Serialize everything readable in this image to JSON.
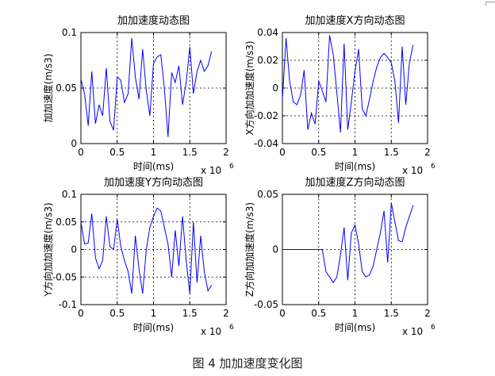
{
  "caption": "图 4  加加速度变化图",
  "chart_data": [
    {
      "type": "line",
      "title": "加加速度动态图",
      "xlabel": "时间(ms)",
      "ylabel": "加加速度(m/s3)",
      "x_exponent": "x 10",
      "x_exponent_power": "6",
      "xlim": [
        0,
        2
      ],
      "ylim": [
        0,
        0.1
      ],
      "xticks": [
        "0",
        "0.5",
        "1",
        "1.5",
        "2"
      ],
      "yticks": [
        "0",
        "0.05",
        "0.1"
      ],
      "grid": true,
      "color": "#0000ff",
      "x": [
        0.0,
        0.05,
        0.1,
        0.15,
        0.2,
        0.25,
        0.3,
        0.35,
        0.4,
        0.45,
        0.5,
        0.55,
        0.6,
        0.65,
        0.7,
        0.75,
        0.8,
        0.85,
        0.9,
        0.95,
        1.0,
        1.05,
        1.1,
        1.15,
        1.2,
        1.25,
        1.3,
        1.35,
        1.4,
        1.45,
        1.5,
        1.55,
        1.6,
        1.65,
        1.7,
        1.75,
        1.8
      ],
      "y": [
        0.058,
        0.045,
        0.016,
        0.065,
        0.018,
        0.035,
        0.025,
        0.068,
        0.02,
        0.012,
        0.06,
        0.057,
        0.037,
        0.045,
        0.095,
        0.06,
        0.04,
        0.085,
        0.048,
        0.025,
        0.072,
        0.078,
        0.08,
        0.05,
        0.006,
        0.064,
        0.055,
        0.07,
        0.035,
        0.055,
        0.087,
        0.045,
        0.065,
        0.075,
        0.065,
        0.07,
        0.083
      ]
    },
    {
      "type": "line",
      "title": "加加速度X方向动态图",
      "xlabel": "时间(ms)",
      "ylabel": "X方向加加速度(m/s3)",
      "x_exponent": "x 10",
      "x_exponent_power": "6",
      "xlim": [
        0,
        2
      ],
      "ylim": [
        -0.04,
        0.04
      ],
      "xticks": [
        "0",
        "0.5",
        "1",
        "1.5",
        "2"
      ],
      "yticks": [
        "-0.04",
        "-0.02",
        "0",
        "0.02",
        "0.04"
      ],
      "grid": true,
      "color": "#0000ff",
      "x": [
        0.0,
        0.05,
        0.1,
        0.15,
        0.2,
        0.25,
        0.3,
        0.35,
        0.4,
        0.45,
        0.5,
        0.55,
        0.6,
        0.65,
        0.7,
        0.75,
        0.8,
        0.85,
        0.9,
        0.95,
        1.0,
        1.05,
        1.1,
        1.15,
        1.2,
        1.25,
        1.3,
        1.35,
        1.4,
        1.45,
        1.5,
        1.55,
        1.6,
        1.65,
        1.7,
        1.75,
        1.8
      ],
      "y": [
        -0.008,
        0.036,
        0.005,
        -0.01,
        -0.012,
        -0.005,
        0.013,
        -0.03,
        -0.018,
        -0.026,
        0.005,
        -0.002,
        -0.01,
        0.038,
        0.024,
        -0.003,
        -0.032,
        0.032,
        -0.03,
        -0.01,
        0.012,
        0.028,
        -0.015,
        -0.02,
        -0.008,
        0.005,
        0.015,
        0.022,
        0.025,
        0.022,
        0.018,
        0.005,
        -0.025,
        0.03,
        -0.012,
        0.018,
        0.031
      ]
    },
    {
      "type": "line",
      "title": "加加速度Y方向动态图",
      "xlabel": "时间(ms)",
      "ylabel": "Y方向加加速度(m/s3)",
      "x_exponent": "x 10",
      "x_exponent_power": "6",
      "xlim": [
        0,
        2
      ],
      "ylim": [
        -0.1,
        0.1
      ],
      "xticks": [
        "0",
        "0.5",
        "1",
        "1.5",
        "2"
      ],
      "yticks": [
        "-0.1",
        "-0.05",
        "0",
        "0.05",
        "0.1"
      ],
      "grid": true,
      "color": "#0000ff",
      "x": [
        0.0,
        0.05,
        0.1,
        0.15,
        0.2,
        0.25,
        0.3,
        0.35,
        0.4,
        0.45,
        0.5,
        0.55,
        0.6,
        0.65,
        0.7,
        0.75,
        0.8,
        0.85,
        0.9,
        0.95,
        1.0,
        1.05,
        1.1,
        1.15,
        1.2,
        1.25,
        1.3,
        1.35,
        1.4,
        1.45,
        1.5,
        1.55,
        1.6,
        1.65,
        1.7,
        1.75,
        1.8
      ],
      "y": [
        0.05,
        0.01,
        0.012,
        0.065,
        -0.015,
        -0.035,
        -0.02,
        0.06,
        0.005,
        0.0,
        0.055,
        0.005,
        -0.02,
        -0.04,
        -0.08,
        0.025,
        -0.035,
        -0.08,
        0.0,
        0.04,
        0.06,
        0.075,
        0.07,
        0.04,
        0.01,
        -0.05,
        0.035,
        -0.03,
        0.06,
        -0.02,
        -0.08,
        0.05,
        -0.06,
        0.025,
        -0.04,
        -0.075,
        -0.065
      ]
    },
    {
      "type": "line",
      "title": "加加速度Z方向动态图",
      "xlabel": "时间(ms)",
      "ylabel": "Z方向加加速度(m/s3)",
      "x_exponent": "x 10",
      "x_exponent_power": "6",
      "xlim": [
        0,
        2
      ],
      "ylim": [
        -0.05,
        0.05
      ],
      "xticks": [
        "0",
        "0.5",
        "1",
        "1.5",
        "2"
      ],
      "yticks": [
        "-0.05",
        "0",
        "0.05"
      ],
      "grid": true,
      "color": "#0000ff",
      "x": [
        0.0,
        0.05,
        0.1,
        0.15,
        0.2,
        0.25,
        0.3,
        0.35,
        0.4,
        0.45,
        0.5,
        0.55,
        0.6,
        0.65,
        0.7,
        0.75,
        0.8,
        0.85,
        0.9,
        0.95,
        1.0,
        1.05,
        1.1,
        1.15,
        1.2,
        1.25,
        1.3,
        1.35,
        1.4,
        1.45,
        1.5,
        1.55,
        1.6,
        1.65,
        1.7,
        1.75,
        1.8
      ],
      "y": [
        0.0,
        0.0,
        0.0,
        0.0,
        0.0,
        0.0,
        0.0,
        0.0,
        0.0,
        0.0,
        0.0,
        0.0,
        -0.02,
        -0.025,
        -0.03,
        -0.025,
        -0.005,
        0.02,
        -0.028,
        0.015,
        0.022,
        0.005,
        -0.02,
        -0.025,
        -0.023,
        -0.015,
        0.0,
        0.015,
        0.035,
        -0.012,
        0.042,
        0.025,
        0.008,
        0.007,
        0.02,
        0.03,
        0.04
      ]
    }
  ]
}
